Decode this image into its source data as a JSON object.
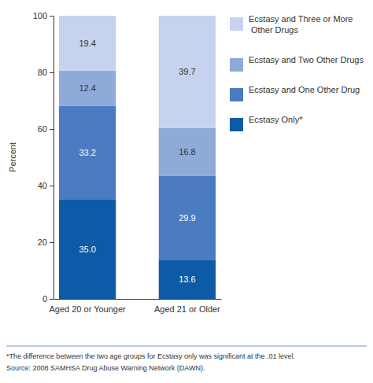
{
  "chart_data": {
    "type": "bar",
    "stacked": true,
    "data_labels": true,
    "legend": "right",
    "y_label": "Percent",
    "categories": [
      "Aged 20 or Younger",
      "Aged 21 or Older"
    ],
    "ylim": [
      0,
      100
    ],
    "yticks": [
      0,
      20,
      40,
      60,
      80,
      100
    ],
    "series": [
      {
        "name": "Ecstasy Only*",
        "color": "#0d5aa7",
        "values": [
          35.0,
          13.6
        ],
        "value_labels": [
          "35.0",
          "13.6"
        ]
      },
      {
        "name": "Ecstasy and One Other Drug",
        "color": "#4b7bc0",
        "values": [
          33.2,
          29.9
        ]
      },
      {
        "name": "Ecstasy and Two Other Drugs",
        "color": "#8eaad9",
        "values": [
          12.4,
          16.8
        ]
      },
      {
        "name": "Ecstasy and Three or More Other Drugs",
        "color": "#c6d2ee",
        "values": [
          19.4,
          39.7
        ]
      }
    ],
    "footnotes": [
      "*The difference between the two age groups for Ecstasy only was significant at the .01 level.",
      "Source: 2008 SAMHSA Drug Abuse Warning Network (DAWN)."
    ]
  }
}
